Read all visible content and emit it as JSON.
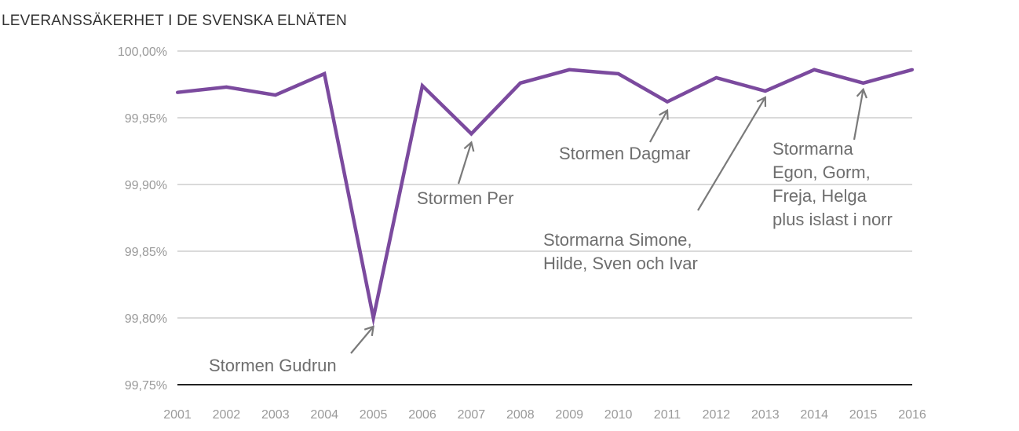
{
  "chart_data": {
    "type": "line",
    "title": "LEVERANSSÄKERHET I DE SVENSKA ELNÄTEN",
    "xlabel": "",
    "ylabel": "",
    "x": [
      "2001",
      "2002",
      "2003",
      "2004",
      "2005",
      "2006",
      "2007",
      "2008",
      "2009",
      "2010",
      "2011",
      "2012",
      "2013",
      "2014",
      "2015",
      "2016"
    ],
    "series": [
      {
        "values": [
          99.969,
          99.973,
          99.967,
          99.983,
          99.8,
          99.974,
          99.938,
          99.976,
          99.986,
          99.983,
          99.962,
          99.98,
          99.97,
          99.986,
          99.976,
          99.986
        ]
      }
    ],
    "ylim": [
      99.75,
      100.0
    ],
    "yticks": [
      99.75,
      99.8,
      99.85,
      99.9,
      99.95,
      100.0
    ],
    "ytick_labels": [
      "99,75%",
      "99,80%",
      "99,85%",
      "99,90%",
      "99,95%",
      "100,00%"
    ],
    "grid": true,
    "legend": "none",
    "line_color": "#7b4a9e",
    "annotations": [
      {
        "lines": [
          "Stormen Gudrun"
        ],
        "x": "2005"
      },
      {
        "lines": [
          "Stormen Per"
        ],
        "x": "2007"
      },
      {
        "lines": [
          "Stormen Dagmar"
        ],
        "x": "2011"
      },
      {
        "lines": [
          "Stormarna Simone,",
          "Hilde, Sven och Ivar"
        ],
        "x": "2013"
      },
      {
        "lines": [
          "Stormarna",
          "Egon, Gorm,",
          "Freja, Helga",
          "plus islast i norr"
        ],
        "x": "2015"
      }
    ]
  }
}
